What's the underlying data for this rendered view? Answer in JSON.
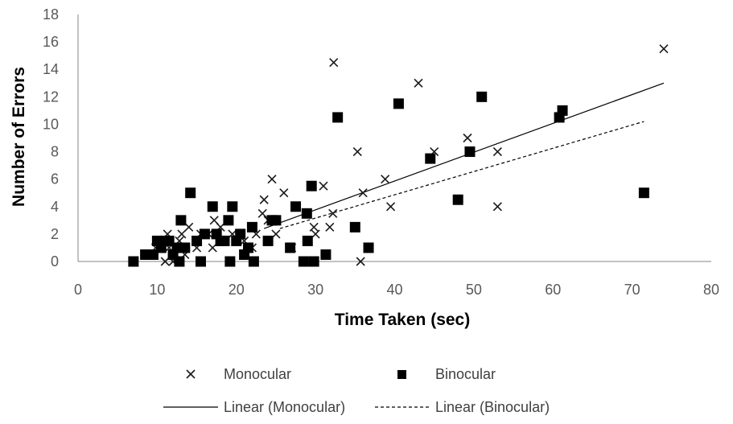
{
  "chart_data": {
    "type": "scatter",
    "title": "",
    "xlabel": "Time Taken (sec)",
    "ylabel": "Number of Errors",
    "xlim": [
      0,
      80
    ],
    "ylim": [
      0,
      18
    ],
    "xticks": [
      0,
      10,
      20,
      30,
      40,
      50,
      60,
      70,
      80
    ],
    "yticks": [
      0,
      2,
      4,
      6,
      8,
      10,
      12,
      14,
      16,
      18
    ],
    "grid": false,
    "legend_position": "bottom",
    "series": [
      {
        "name": "Monocular",
        "marker": "x",
        "color": "#1a1a1a",
        "points": [
          [
            9.8,
            1
          ],
          [
            10.5,
            1.5
          ],
          [
            11,
            0
          ],
          [
            11.3,
            2
          ],
          [
            11.5,
            1
          ],
          [
            12,
            0
          ],
          [
            12.4,
            0.5
          ],
          [
            12.8,
            1.5
          ],
          [
            13.1,
            2
          ],
          [
            13.5,
            0.5
          ],
          [
            14,
            2.5
          ],
          [
            15,
            1
          ],
          [
            15.5,
            2
          ],
          [
            16.5,
            2
          ],
          [
            17,
            1
          ],
          [
            17.2,
            3
          ],
          [
            18,
            2.5
          ],
          [
            18.5,
            1.5
          ],
          [
            19.5,
            2
          ],
          [
            21,
            1.5
          ],
          [
            22,
            1
          ],
          [
            22.5,
            2
          ],
          [
            23.3,
            3.5
          ],
          [
            23.5,
            4.5
          ],
          [
            24,
            3
          ],
          [
            24.5,
            6
          ],
          [
            25,
            2
          ],
          [
            26,
            5
          ],
          [
            27,
            1
          ],
          [
            29,
            3.5
          ],
          [
            29.8,
            2.5
          ],
          [
            30,
            2
          ],
          [
            31,
            5.5
          ],
          [
            31.8,
            2.5
          ],
          [
            32.2,
            3.5
          ],
          [
            32.3,
            14.5
          ],
          [
            35.3,
            8
          ],
          [
            35.7,
            0
          ],
          [
            36,
            5
          ],
          [
            38.8,
            6
          ],
          [
            39.5,
            4
          ],
          [
            43,
            13
          ],
          [
            45,
            8
          ],
          [
            49.2,
            9
          ],
          [
            53,
            8
          ],
          [
            53,
            4
          ],
          [
            74,
            15.5
          ]
        ]
      },
      {
        "name": "Binocular",
        "marker": "square",
        "color": "#000000",
        "points": [
          [
            7,
            0
          ],
          [
            8.5,
            0.5
          ],
          [
            9.5,
            0.5
          ],
          [
            10,
            1.5
          ],
          [
            10.5,
            1
          ],
          [
            11,
            1.5
          ],
          [
            11.5,
            1.5
          ],
          [
            12,
            0.5
          ],
          [
            12.5,
            1
          ],
          [
            12.8,
            0
          ],
          [
            13,
            3
          ],
          [
            13.5,
            1
          ],
          [
            14.2,
            5
          ],
          [
            15,
            1.5
          ],
          [
            15.5,
            0
          ],
          [
            16,
            2
          ],
          [
            17,
            4
          ],
          [
            17.5,
            2
          ],
          [
            18,
            1.5
          ],
          [
            18.5,
            1.5
          ],
          [
            19,
            3
          ],
          [
            19.2,
            0
          ],
          [
            19.5,
            4
          ],
          [
            20,
            1.5
          ],
          [
            20.5,
            2
          ],
          [
            21,
            0.5
          ],
          [
            21.5,
            1
          ],
          [
            22,
            2.5
          ],
          [
            22.2,
            0
          ],
          [
            24,
            1.5
          ],
          [
            24.5,
            3
          ],
          [
            25,
            3
          ],
          [
            26.8,
            1
          ],
          [
            27.5,
            4
          ],
          [
            28.5,
            0
          ],
          [
            28.9,
            3.5
          ],
          [
            29,
            1.5
          ],
          [
            29.5,
            5.5
          ],
          [
            29.8,
            0
          ],
          [
            31.3,
            0.5
          ],
          [
            32.8,
            10.5
          ],
          [
            35,
            2.5
          ],
          [
            36.7,
            1
          ],
          [
            40.5,
            11.5
          ],
          [
            44.5,
            7.5
          ],
          [
            48,
            4.5
          ],
          [
            49.5,
            8
          ],
          [
            51,
            12
          ],
          [
            60.8,
            10.5
          ],
          [
            61.2,
            11
          ],
          [
            71.5,
            5
          ]
        ]
      }
    ],
    "trendlines": [
      {
        "name": "Linear (Monocular)",
        "style": "solid",
        "color": "#000000",
        "x": [
          23.5,
          74
        ],
        "y": [
          2.4,
          13
        ]
      },
      {
        "name": "Linear (Binocular)",
        "style": "dashed",
        "color": "#000000",
        "x": [
          25.5,
          71.5
        ],
        "y": [
          2.4,
          10.2
        ]
      }
    ]
  }
}
